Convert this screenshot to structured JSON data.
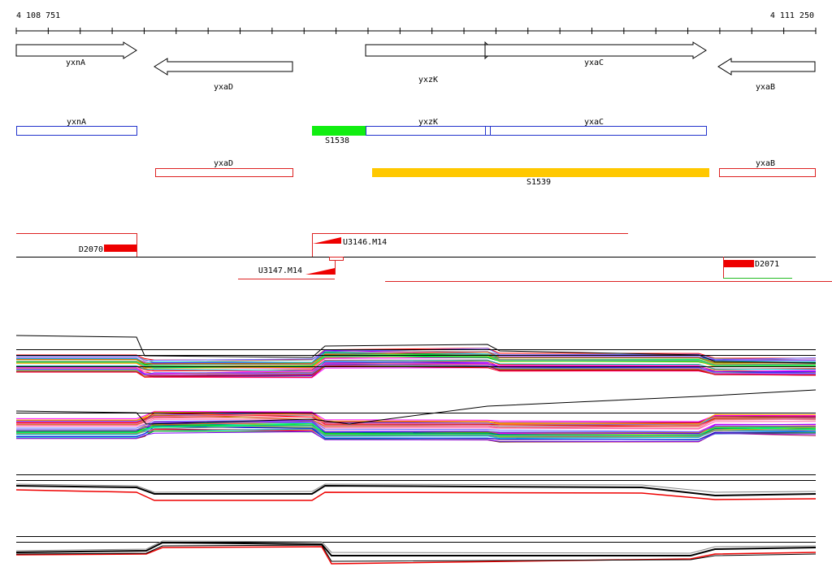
{
  "ruler": {
    "start": "4 108 751",
    "end": "4 111 250"
  },
  "genes": [
    {
      "label": "yxnA"
    },
    {
      "label": "yxaD"
    },
    {
      "label": "yxzK"
    },
    {
      "label": "yxaC"
    },
    {
      "label": "yxaB"
    }
  ],
  "annotations": [
    {
      "label": "yxnA"
    },
    {
      "label": "yxzK"
    },
    {
      "label": "yxaC"
    },
    {
      "label": "S1538"
    },
    {
      "label": "yxaD"
    },
    {
      "label": "yxaB"
    },
    {
      "label": "S1539"
    }
  ],
  "features": [
    {
      "label": "D2070"
    },
    {
      "label": "U3146.M14"
    },
    {
      "label": "U3147.M14"
    },
    {
      "label": "D2071"
    }
  ]
}
